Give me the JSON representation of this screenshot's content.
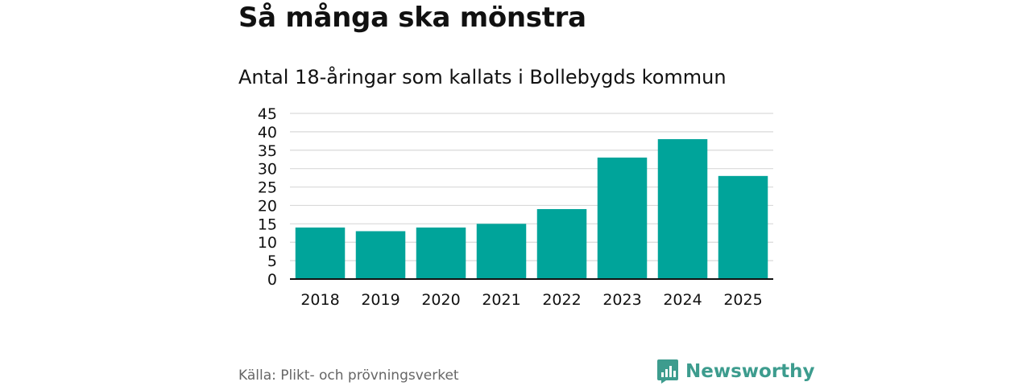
{
  "title": "Så många ska mönstra",
  "subtitle": "Antal 18-åringar som kallats i Bollebygds kommun",
  "source": "Källa: Plikt- och prövningsverket",
  "brand": {
    "name": "Newsworthy",
    "icon": "newsworthy-logo-icon",
    "color": "#3d9c8e"
  },
  "colors": {
    "bar": "#00a49a",
    "grid": "#d9d9d9",
    "axis": "#111111"
  },
  "chart_data": {
    "type": "bar",
    "title": "Så många ska mönstra",
    "subtitle": "Antal 18-åringar som kallats i Bollebygds kommun",
    "categories": [
      "2018",
      "2019",
      "2020",
      "2021",
      "2022",
      "2023",
      "2024",
      "2025"
    ],
    "values": [
      14,
      13,
      14,
      15,
      19,
      33,
      38,
      28
    ],
    "xlabel": "",
    "ylabel": "",
    "ylim": [
      0,
      45
    ],
    "yticks": [
      0,
      5,
      10,
      15,
      20,
      25,
      30,
      35,
      40,
      45
    ],
    "grid": true,
    "legend": "none"
  }
}
